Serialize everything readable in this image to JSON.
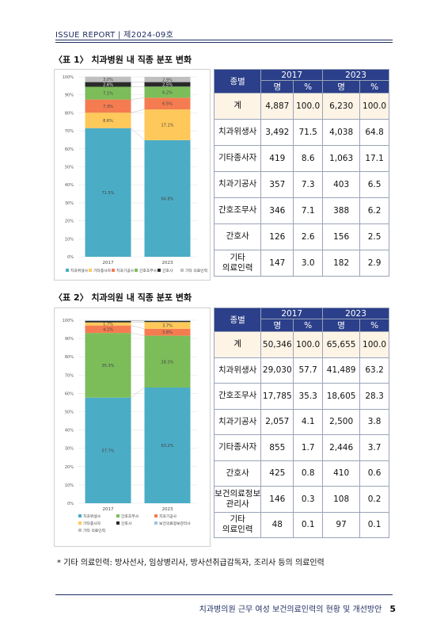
{
  "header": {
    "title": "ISSUE REPORT | 제2024-09호"
  },
  "footer": {
    "text": "치과병의원 근무 여성 보건의료인력의 현황 및 개선방안",
    "page": "5"
  },
  "note": "* 기타 의료인력: 방사선사, 임상병리사, 방사선취급감독자, 조리사 등의 의료인력",
  "colors": {
    "hygienist": "#4bacc6",
    "other_worker": "#ffc85a",
    "technician": "#f47c50",
    "nurse_aide": "#7cbd5a",
    "nurse": "#2a2a2a",
    "other_medical": "#bfbfbf",
    "health_info": "#9dc3e6",
    "header_bg": "#2b3f8a",
    "total_bg": "#fdf4e6"
  },
  "table1": {
    "title": "〈표 1〉 치과병원 내 직종 분포 변화",
    "head": {
      "type": "종별",
      "y1": "2017",
      "y2": "2023",
      "n": "명",
      "pct": "%"
    },
    "rows": [
      {
        "label": "계",
        "n1": "4,887",
        "p1": "100.0",
        "n2": "6,230",
        "p2": "100.0"
      },
      {
        "label": "치과위생사",
        "n1": "3,492",
        "p1": "71.5",
        "n2": "4,038",
        "p2": "64.8"
      },
      {
        "label": "기타종사자",
        "n1": "419",
        "p1": "8.6",
        "n2": "1,063",
        "p2": "17.1"
      },
      {
        "label": "치과기공사",
        "n1": "357",
        "p1": "7.3",
        "n2": "403",
        "p2": "6.5"
      },
      {
        "label": "간호조무사",
        "n1": "346",
        "p1": "7.1",
        "n2": "388",
        "p2": "6.2"
      },
      {
        "label": "간호사",
        "n1": "126",
        "p1": "2.6",
        "n2": "156",
        "p2": "2.5"
      },
      {
        "label": "기타\n의료인력",
        "n1": "147",
        "p1": "3.0",
        "n2": "182",
        "p2": "2.9"
      }
    ]
  },
  "table2": {
    "title": "〈표 2〉 치과의원 내 직종 분포 변화",
    "head": {
      "type": "종별",
      "y1": "2017",
      "y2": "2023",
      "n": "명",
      "pct": "%"
    },
    "rows": [
      {
        "label": "계",
        "n1": "50,346",
        "p1": "100.0",
        "n2": "65,655",
        "p2": "100.0"
      },
      {
        "label": "치과위생사",
        "n1": "29,030",
        "p1": "57.7",
        "n2": "41,489",
        "p2": "63.2"
      },
      {
        "label": "간호조무사",
        "n1": "17,785",
        "p1": "35.3",
        "n2": "18,605",
        "p2": "28.3"
      },
      {
        "label": "치과기공사",
        "n1": "2,057",
        "p1": "4.1",
        "n2": "2,500",
        "p2": "3.8"
      },
      {
        "label": "기타종사자",
        "n1": "855",
        "p1": "1.7",
        "n2": "2,446",
        "p2": "3.7"
      },
      {
        "label": "간호사",
        "n1": "425",
        "p1": "0.8",
        "n2": "410",
        "p2": "0.6"
      },
      {
        "label": "보건의료정보\n관리사",
        "n1": "146",
        "p1": "0.3",
        "n2": "108",
        "p2": "0.2"
      },
      {
        "label": "기타\n의료인력",
        "n1": "48",
        "p1": "0.1",
        "n2": "97",
        "p2": "0.1"
      }
    ]
  },
  "chart_data": [
    {
      "type": "bar",
      "stacked": true,
      "categories": [
        "2017",
        "2023"
      ],
      "ylim": [
        0,
        100
      ],
      "yticks": [
        "0%",
        "10%",
        "20%",
        "30%",
        "40%",
        "50%",
        "60%",
        "70%",
        "80%",
        "90%",
        "100%"
      ],
      "legend": [
        "치과위생사",
        "기타종사자",
        "치과기공사",
        "간호조무사",
        "간호사",
        "기타 의료인력"
      ],
      "series": [
        {
          "name": "치과위생사",
          "color": "hygienist",
          "values": [
            71.5,
            64.8
          ],
          "labels": [
            "71.5%",
            "64.8%"
          ]
        },
        {
          "name": "기타종사자",
          "color": "other_worker",
          "values": [
            8.6,
            17.1
          ],
          "labels": [
            "8.6%",
            "17.1%"
          ]
        },
        {
          "name": "치과기공사",
          "color": "technician",
          "values": [
            7.3,
            6.5
          ],
          "labels": [
            "7.3%",
            "6.5%"
          ]
        },
        {
          "name": "간호조무사",
          "color": "nurse_aide",
          "values": [
            7.1,
            6.2
          ],
          "labels": [
            "7.1%",
            "6.2%"
          ]
        },
        {
          "name": "간호사",
          "color": "nurse",
          "values": [
            2.6,
            2.5
          ],
          "labels": [
            "2.6%",
            "2.5%"
          ]
        },
        {
          "name": "기타 의료인력",
          "color": "other_medical",
          "values": [
            3.0,
            2.9
          ],
          "labels": [
            "3.0%",
            "2.9%"
          ]
        }
      ]
    },
    {
      "type": "bar",
      "stacked": true,
      "categories": [
        "2017",
        "2023"
      ],
      "ylim": [
        0,
        100
      ],
      "yticks": [
        "0%",
        "10%",
        "20%",
        "30%",
        "40%",
        "50%",
        "60%",
        "70%",
        "80%",
        "90%",
        "100%"
      ],
      "legend": [
        "치과위생사",
        "간호조무사",
        "치과기공사",
        "기타종사자",
        "간호사",
        "보건의료정보관리사",
        "기타 의료인력"
      ],
      "series": [
        {
          "name": "치과위생사",
          "color": "hygienist",
          "values": [
            57.7,
            63.2
          ],
          "labels": [
            "57.7%",
            "63.2%"
          ]
        },
        {
          "name": "간호조무사",
          "color": "nurse_aide",
          "values": [
            35.3,
            28.3
          ],
          "labels": [
            "35.3%",
            "28.3%"
          ]
        },
        {
          "name": "치과기공사",
          "color": "technician",
          "values": [
            4.1,
            3.8
          ],
          "labels": [
            "4.1%",
            "3.8%"
          ]
        },
        {
          "name": "기타종사자",
          "color": "other_worker",
          "values": [
            1.7,
            3.7
          ],
          "labels": [
            "1.7%",
            "3.7%"
          ]
        },
        {
          "name": "간호사",
          "color": "nurse",
          "values": [
            0.8,
            0.6
          ],
          "labels": [
            "",
            ""
          ]
        },
        {
          "name": "보건의료정보관리사",
          "color": "health_info",
          "values": [
            0.3,
            0.2
          ],
          "labels": [
            "",
            ""
          ]
        },
        {
          "name": "기타 의료인력",
          "color": "other_medical",
          "values": [
            0.1,
            0.1
          ],
          "labels": [
            "",
            ""
          ]
        }
      ]
    }
  ]
}
